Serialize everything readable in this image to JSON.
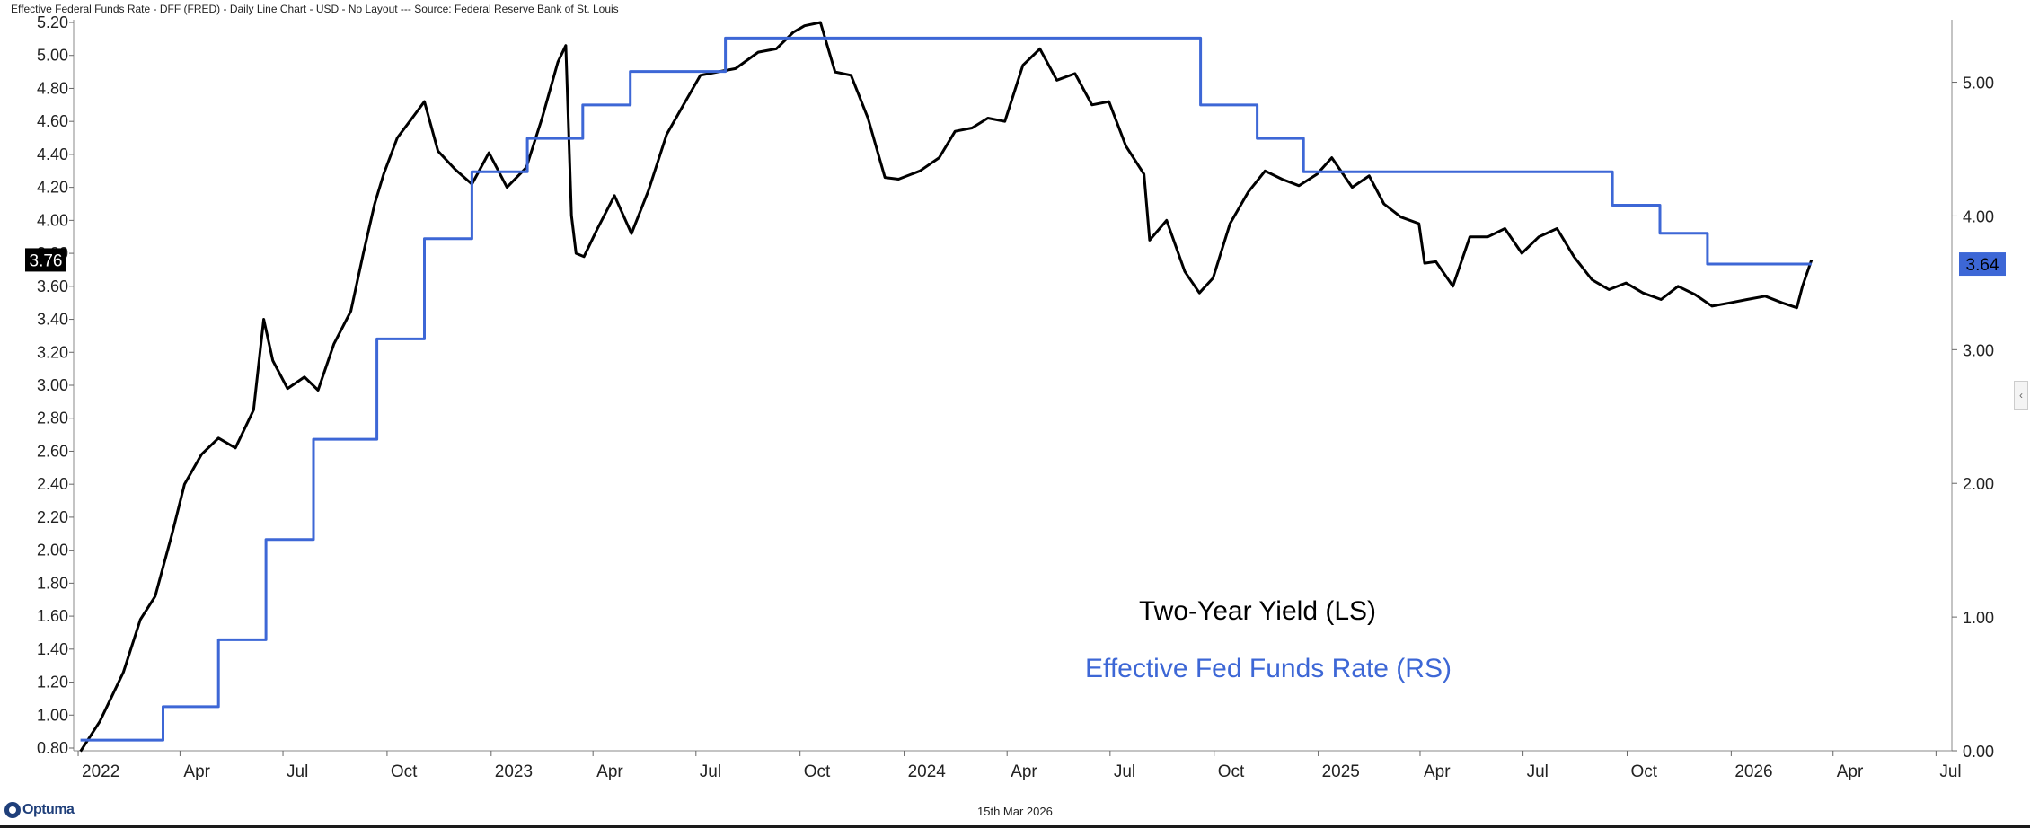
{
  "header": {
    "title": "Effective Federal Funds Rate - DFF (FRED) - Daily Line Chart - USD - No Layout --- Source: Federal Reserve Bank of St. Louis"
  },
  "footer": {
    "date": "15th Mar 2026",
    "logo": "Optuma"
  },
  "colors": {
    "two_year": "#000000",
    "fed_funds": "#3d67d6",
    "axis": "#555555"
  },
  "chart_data": {
    "type": "line",
    "x_tick_labels": [
      "2022",
      "Apr",
      "Jul",
      "Oct",
      "2023",
      "Apr",
      "Jul",
      "Oct",
      "2024",
      "Apr",
      "Jul",
      "Oct",
      "2025",
      "Apr",
      "Jul",
      "Oct",
      "2026",
      "Apr",
      "Jul"
    ],
    "left_axis": {
      "ylim": [
        0.8,
        5.2
      ],
      "ticks": [
        "0.80",
        "1.00",
        "1.20",
        "1.40",
        "1.60",
        "1.80",
        "2.00",
        "2.20",
        "2.40",
        "2.60",
        "2.80",
        "3.00",
        "3.20",
        "3.40",
        "3.60",
        "3.80",
        "4.00",
        "4.20",
        "4.40",
        "4.60",
        "4.80",
        "5.00",
        "5.20"
      ],
      "last_value_label": "3.76"
    },
    "right_axis": {
      "ylim": [
        0.0,
        5.4
      ],
      "ticks": [
        "0.00",
        "1.00",
        "2.00",
        "3.00",
        "4.00",
        "5.00"
      ],
      "last_value_label": "3.64"
    },
    "series": [
      {
        "name": "Two-Year Yield (LS)",
        "axis": "left",
        "x": [
          "2022-01-03",
          "2022-01-20",
          "2022-02-10",
          "2022-02-25",
          "2022-03-10",
          "2022-03-25",
          "2022-04-05",
          "2022-04-20",
          "2022-05-05",
          "2022-05-20",
          "2022-06-05",
          "2022-06-14",
          "2022-06-22",
          "2022-07-05",
          "2022-07-20",
          "2022-08-01",
          "2022-08-15",
          "2022-08-30",
          "2022-09-10",
          "2022-09-20",
          "2022-09-28",
          "2022-10-10",
          "2022-10-21",
          "2022-11-03",
          "2022-11-15",
          "2022-11-30",
          "2022-12-15",
          "2022-12-30",
          "2023-01-15",
          "2023-02-01",
          "2023-02-15",
          "2023-03-01",
          "2023-03-08",
          "2023-03-13",
          "2023-03-17",
          "2023-03-24",
          "2023-04-05",
          "2023-04-20",
          "2023-05-05",
          "2023-05-20",
          "2023-06-05",
          "2023-06-20",
          "2023-07-05",
          "2023-07-20",
          "2023-08-05",
          "2023-08-25",
          "2023-09-10",
          "2023-09-25",
          "2023-10-05",
          "2023-10-19",
          "2023-11-01",
          "2023-11-15",
          "2023-11-30",
          "2023-12-15",
          "2023-12-27",
          "2024-01-15",
          "2024-02-01",
          "2024-02-15",
          "2024-03-01",
          "2024-03-15",
          "2024-03-30",
          "2024-04-15",
          "2024-04-30",
          "2024-05-15",
          "2024-05-31",
          "2024-06-15",
          "2024-06-30",
          "2024-07-15",
          "2024-07-31",
          "2024-08-05",
          "2024-08-20",
          "2024-09-05",
          "2024-09-18",
          "2024-09-30",
          "2024-10-15",
          "2024-10-31",
          "2024-11-15",
          "2024-11-30",
          "2024-12-15",
          "2024-12-31",
          "2025-01-13",
          "2025-01-31",
          "2025-02-15",
          "2025-02-28",
          "2025-03-15",
          "2025-03-31",
          "2025-04-05",
          "2025-04-15",
          "2025-04-30",
          "2025-05-15",
          "2025-05-31",
          "2025-06-15",
          "2025-06-30",
          "2025-07-15",
          "2025-07-31",
          "2025-08-15",
          "2025-08-31",
          "2025-09-15",
          "2025-09-30",
          "2025-10-15",
          "2025-10-31",
          "2025-11-15",
          "2025-11-30",
          "2025-12-15",
          "2025-12-31",
          "2026-01-15",
          "2026-01-31",
          "2026-02-15",
          "2026-02-28",
          "2026-03-05",
          "2026-03-13"
        ],
        "values": [
          0.78,
          0.96,
          1.26,
          1.58,
          1.72,
          2.1,
          2.4,
          2.58,
          2.68,
          2.62,
          2.85,
          3.4,
          3.15,
          2.98,
          3.05,
          2.97,
          3.25,
          3.45,
          3.8,
          4.1,
          4.28,
          4.5,
          4.6,
          4.72,
          4.42,
          4.31,
          4.22,
          4.41,
          4.2,
          4.32,
          4.62,
          4.96,
          5.06,
          4.03,
          3.8,
          3.78,
          3.95,
          4.15,
          3.92,
          4.18,
          4.52,
          4.7,
          4.88,
          4.9,
          4.92,
          5.02,
          5.04,
          5.14,
          5.18,
          5.2,
          4.9,
          4.88,
          4.62,
          4.26,
          4.25,
          4.3,
          4.38,
          4.54,
          4.56,
          4.62,
          4.6,
          4.94,
          5.04,
          4.85,
          4.89,
          4.7,
          4.72,
          4.45,
          4.28,
          3.88,
          4.0,
          3.69,
          3.56,
          3.65,
          3.98,
          4.17,
          4.3,
          4.25,
          4.21,
          4.28,
          4.38,
          4.2,
          4.27,
          4.1,
          4.02,
          3.98,
          3.74,
          3.75,
          3.6,
          3.9,
          3.9,
          3.95,
          3.8,
          3.9,
          3.95,
          3.78,
          3.64,
          3.58,
          3.62,
          3.56,
          3.52,
          3.6,
          3.55,
          3.48,
          3.5,
          3.52,
          3.54,
          3.5,
          3.47,
          3.6,
          3.76
        ]
      },
      {
        "name": "Effective Fed Funds Rate (RS)",
        "axis": "right",
        "x": [
          "2022-01-03",
          "2022-03-17",
          "2022-05-05",
          "2022-06-16",
          "2022-07-28",
          "2022-09-22",
          "2022-11-03",
          "2022-12-15",
          "2023-02-02",
          "2023-03-23",
          "2023-05-04",
          "2023-07-27",
          "2024-09-19",
          "2024-11-08",
          "2024-12-19",
          "2025-09-18",
          "2025-10-30",
          "2025-12-11",
          "2026-03-13"
        ],
        "values": [
          0.08,
          0.33,
          0.83,
          1.58,
          2.33,
          3.08,
          3.83,
          4.33,
          4.58,
          4.83,
          5.08,
          5.33,
          4.83,
          4.58,
          4.33,
          4.08,
          3.87,
          3.64,
          3.64
        ]
      }
    ],
    "annotations": {
      "two_year": "Two-Year Yield (LS)",
      "fed_funds": "Effective Fed Funds Rate (RS)"
    },
    "grid": false,
    "legend_position": "lower-right (text annotations)"
  }
}
